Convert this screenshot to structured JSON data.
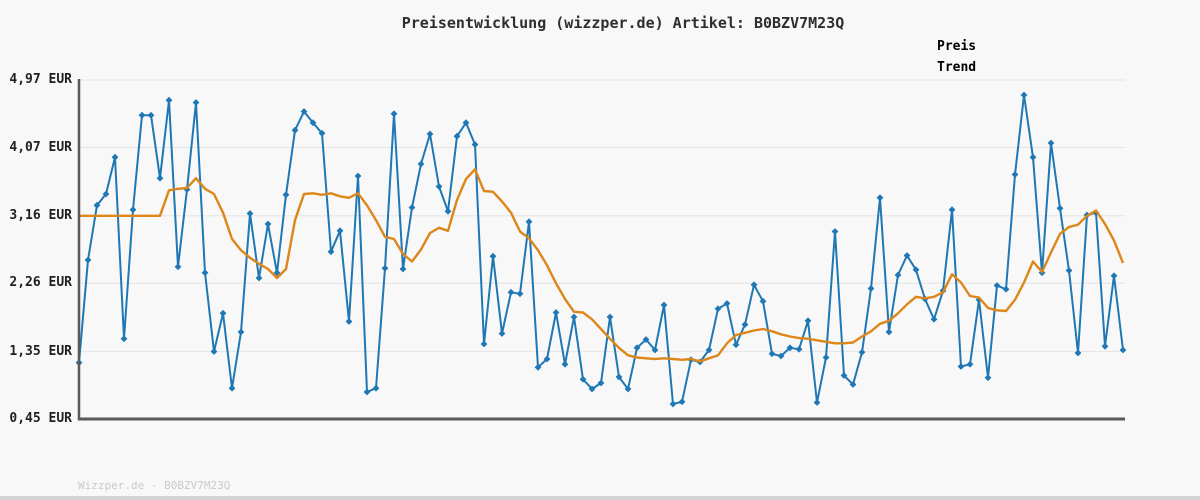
{
  "title": "Preisentwicklung (wizzper.de) Artikel: B0BZV7M23Q",
  "legend": {
    "price_label": "Preis",
    "trend_label": "Trend"
  },
  "y_axis": {
    "labels": [
      "4,97 EUR",
      "4,07 EUR",
      "3,16 EUR",
      "2,26 EUR",
      "1,35 EUR",
      "0,45 EUR"
    ],
    "values": [
      4.97,
      4.07,
      3.16,
      2.26,
      1.35,
      0.45
    ]
  },
  "watermark": "Wizzper.de - B0BZV7M23Q",
  "colors": {
    "price": "#1f77b4",
    "trend": "#dd861a",
    "grid": "#e7e7e7",
    "spine": "#5a5a5a",
    "background": "#f8f8f8",
    "title_text": "#2e2e2e",
    "axis_text": "#1f1f1f",
    "watermark_text": "#c9c9c9",
    "bottom_bar": "#d3d3d3"
  },
  "chart_data": {
    "type": "line",
    "title": "Preisentwicklung (wizzper.de) Artikel: B0BZV7M23Q",
    "xlabel": "",
    "ylabel": "EUR",
    "ylim": [
      0.45,
      4.97
    ],
    "y_ticks": [
      0.45,
      1.35,
      2.26,
      3.16,
      4.07,
      4.97
    ],
    "x": "index 0..116 (unlabeled time axis)",
    "grid": "horizontal",
    "legend_position": "top-right",
    "series": [
      {
        "name": "Preis",
        "color": "#1f77b4",
        "marker": "diamond",
        "values": [
          1.2,
          2.57,
          3.3,
          3.45,
          3.94,
          1.52,
          3.24,
          4.5,
          4.5,
          3.66,
          4.7,
          2.48,
          3.51,
          4.67,
          2.4,
          1.35,
          1.86,
          0.86,
          1.61,
          3.19,
          2.33,
          3.05,
          2.4,
          3.44,
          4.3,
          4.55,
          4.4,
          4.26,
          2.68,
          2.96,
          1.75,
          3.69,
          0.81,
          0.86,
          2.46,
          4.52,
          2.45,
          3.27,
          3.85,
          4.25,
          3.55,
          3.22,
          4.22,
          4.4,
          4.11,
          1.45,
          2.62,
          1.59,
          2.14,
          2.12,
          3.08,
          1.14,
          1.25,
          1.87,
          1.18,
          1.81,
          0.98,
          0.85,
          0.93,
          1.81,
          1.01,
          0.85,
          1.4,
          1.51,
          1.37,
          1.97,
          0.65,
          0.68,
          1.24,
          1.21,
          1.37,
          1.92,
          1.99,
          1.44,
          1.71,
          2.24,
          2.02,
          1.32,
          1.29,
          1.4,
          1.38,
          1.76,
          0.67,
          1.27,
          2.95,
          1.03,
          0.91,
          1.34,
          2.19,
          3.4,
          1.61,
          2.37,
          2.63,
          2.44,
          2.05,
          1.78,
          2.16,
          3.24,
          1.15,
          1.18,
          2.04,
          1.0,
          2.23,
          2.18,
          3.71,
          4.77,
          3.94,
          2.4,
          4.13,
          3.26,
          2.43,
          1.33,
          3.17,
          3.2,
          1.42,
          2.36,
          1.37
        ]
      },
      {
        "name": "Trend",
        "color": "#dd861a",
        "marker": "none",
        "values": [
          3.16,
          3.16,
          3.16,
          3.16,
          3.16,
          3.16,
          3.16,
          3.16,
          3.16,
          3.16,
          3.5,
          3.52,
          3.53,
          3.66,
          3.52,
          3.45,
          3.2,
          2.85,
          2.7,
          2.6,
          2.52,
          2.45,
          2.33,
          2.45,
          3.1,
          3.45,
          3.46,
          3.44,
          3.46,
          3.42,
          3.4,
          3.46,
          3.3,
          3.1,
          2.88,
          2.85,
          2.65,
          2.55,
          2.71,
          2.93,
          3.0,
          2.96,
          3.37,
          3.65,
          3.78,
          3.49,
          3.48,
          3.35,
          3.2,
          2.95,
          2.86,
          2.7,
          2.5,
          2.26,
          2.05,
          1.88,
          1.87,
          1.78,
          1.65,
          1.52,
          1.4,
          1.3,
          1.27,
          1.26,
          1.25,
          1.26,
          1.25,
          1.24,
          1.25,
          1.22,
          1.26,
          1.3,
          1.46,
          1.57,
          1.6,
          1.63,
          1.65,
          1.62,
          1.58,
          1.55,
          1.53,
          1.52,
          1.5,
          1.48,
          1.46,
          1.46,
          1.47,
          1.55,
          1.62,
          1.72,
          1.76,
          1.86,
          1.98,
          2.08,
          2.06,
          2.08,
          2.14,
          2.38,
          2.27,
          2.09,
          2.07,
          1.93,
          1.9,
          1.89,
          2.04,
          2.27,
          2.55,
          2.41,
          2.67,
          2.92,
          3.01,
          3.04,
          3.16,
          3.23,
          3.05,
          2.83,
          2.53
        ]
      }
    ]
  },
  "layout_note": "no x tick labels visible"
}
